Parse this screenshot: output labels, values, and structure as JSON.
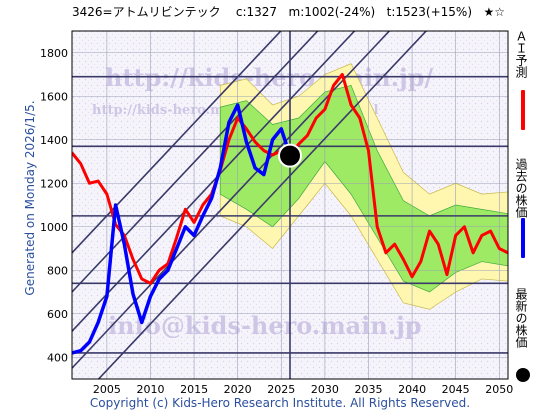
{
  "header": {
    "code": "3426",
    "name": "アトムリビンテック",
    "current": "c:1327",
    "min": "m:1002(-24%)",
    "target": "t:1523(+15%)",
    "stars": "★☆"
  },
  "left_caption": "Generated on Monday 2026/1/5.",
  "watermarks": {
    "url_large": "http://kids-hero.main.jp/",
    "url_small": "http://kids-hero.main.jp/code3426.html",
    "email": "info@kids-hero.main.jp"
  },
  "legend": {
    "ai_label": "ＡＩ予測",
    "past_label": "過去の株価",
    "latest_label": "最新の株価"
  },
  "colors": {
    "ai": "#ff0000",
    "past": "#0000ff",
    "latest": "#000000",
    "band_green": "#9fea64",
    "band_yellow": "#fff6b0",
    "trend_line": "#3a3a6a",
    "grid": "#9aa0b8"
  },
  "footer": "Copyright (c) Kids-Hero Research Institute. All Rights Reserved.",
  "chart_data": {
    "type": "line",
    "xlim": [
      2001,
      2051
    ],
    "ylim": [
      300,
      1900
    ],
    "xticks": [
      2005,
      2010,
      2015,
      2020,
      2025,
      2030,
      2035,
      2040,
      2045,
      2050
    ],
    "yticks": [
      400,
      600,
      800,
      1000,
      1200,
      1400,
      1600,
      1800
    ],
    "hlines": [
      420,
      740,
      1050,
      1370,
      1690
    ],
    "vline_x": 2026,
    "latest_point": {
      "x": 2026,
      "y": 1327
    },
    "trend_lines": [
      {
        "x": [
          2001,
          2051
        ],
        "y": [
          170,
          2300
        ]
      },
      {
        "x": [
          2001,
          2051
        ],
        "y": [
          350,
          2480
        ]
      },
      {
        "x": [
          2001,
          2051
        ],
        "y": [
          520,
          2650
        ]
      },
      {
        "x": [
          2001,
          2051
        ],
        "y": [
          700,
          2830
        ]
      },
      {
        "x": [
          2001,
          2051
        ],
        "y": [
          880,
          3010
        ]
      }
    ],
    "band_outer": {
      "x": [
        2018,
        2021,
        2024,
        2027,
        2030,
        2033,
        2036,
        2039,
        2042,
        2045,
        2048,
        2051
      ],
      "upper": [
        1650,
        1680,
        1560,
        1600,
        1700,
        1750,
        1500,
        1250,
        1150,
        1200,
        1150,
        1160
      ],
      "lower": [
        1050,
        1000,
        900,
        1050,
        1200,
        1050,
        850,
        650,
        620,
        700,
        760,
        750
      ]
    },
    "band_inner": {
      "x": [
        2018,
        2021,
        2024,
        2027,
        2030,
        2033,
        2036,
        2039,
        2042,
        2045,
        2048,
        2051
      ],
      "upper": [
        1550,
        1580,
        1470,
        1500,
        1620,
        1650,
        1350,
        1120,
        1050,
        1100,
        1080,
        1060
      ],
      "lower": [
        1150,
        1080,
        1000,
        1130,
        1300,
        1150,
        950,
        750,
        700,
        790,
        840,
        820
      ]
    },
    "series": [
      {
        "name": "ＡＩ予測",
        "x": [
          2001,
          2002,
          2003,
          2004,
          2005,
          2006,
          2007,
          2008,
          2009,
          2010,
          2011,
          2012,
          2013,
          2014,
          2015,
          2016,
          2017,
          2018,
          2019,
          2020,
          2021,
          2022,
          2023,
          2024,
          2025,
          2026,
          2027,
          2028,
          2029,
          2030,
          2031,
          2032,
          2033,
          2034,
          2035,
          2036,
          2037,
          2038,
          2039,
          2040,
          2041,
          2042,
          2043,
          2044,
          2045,
          2046,
          2047,
          2048,
          2049,
          2050,
          2051
        ],
        "y": [
          1340,
          1290,
          1200,
          1210,
          1150,
          1010,
          960,
          850,
          760,
          740,
          800,
          830,
          950,
          1080,
          1020,
          1100,
          1150,
          1260,
          1400,
          1500,
          1450,
          1390,
          1350,
          1330,
          1350,
          1330,
          1380,
          1420,
          1500,
          1540,
          1650,
          1700,
          1560,
          1500,
          1350,
          1000,
          880,
          920,
          850,
          770,
          840,
          980,
          920,
          780,
          960,
          1000,
          880,
          960,
          980,
          900,
          880
        ]
      },
      {
        "name": "過去の株価",
        "x": [
          2001,
          2002,
          2003,
          2004,
          2005,
          2006,
          2007,
          2008,
          2009,
          2010,
          2011,
          2012,
          2013,
          2014,
          2015,
          2016,
          2017,
          2018,
          2019,
          2020,
          2021,
          2022,
          2023,
          2024,
          2025,
          2026
        ],
        "y": [
          420,
          430,
          470,
          560,
          680,
          1100,
          920,
          690,
          560,
          680,
          760,
          800,
          900,
          1000,
          960,
          1050,
          1130,
          1270,
          1480,
          1560,
          1390,
          1270,
          1240,
          1400,
          1450,
          1327
        ]
      }
    ]
  }
}
